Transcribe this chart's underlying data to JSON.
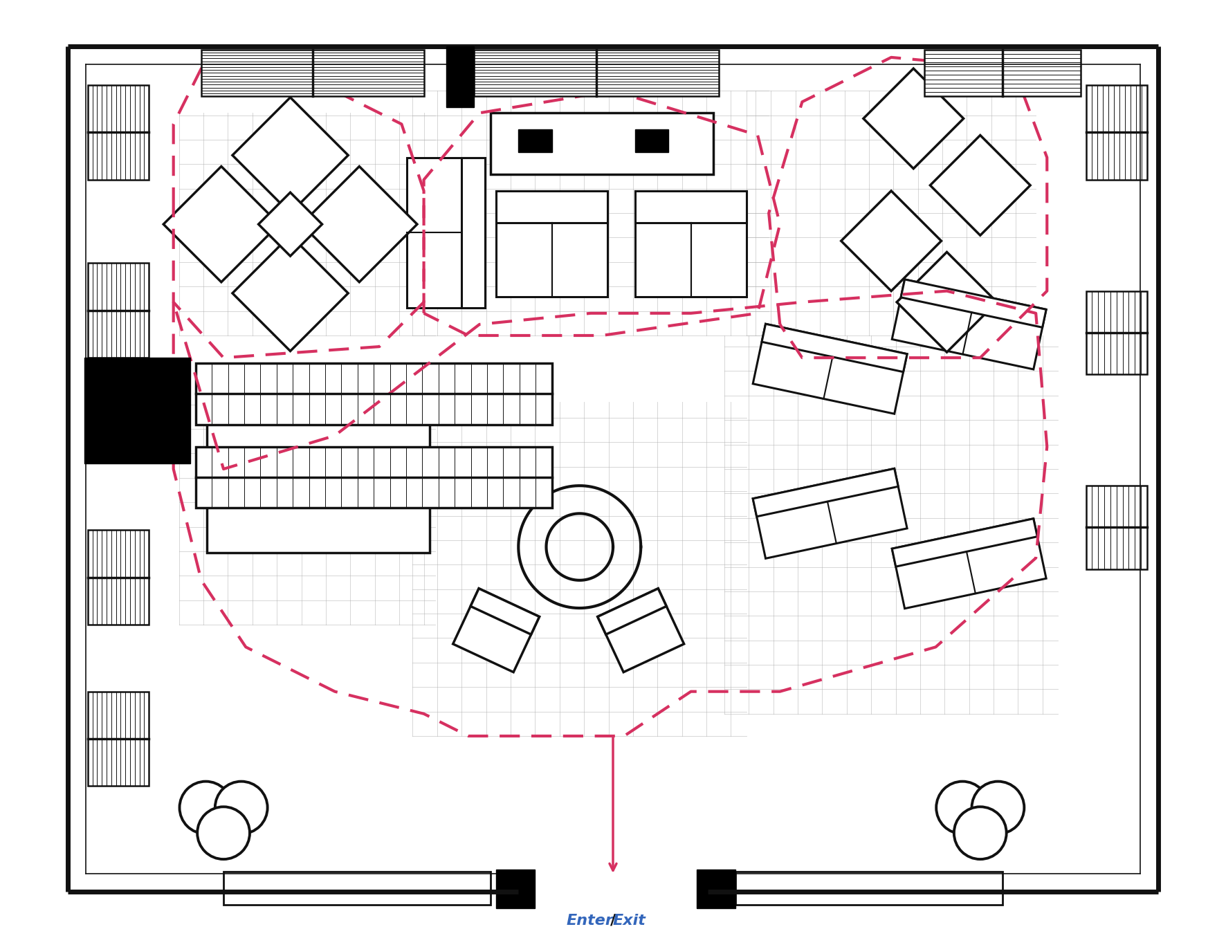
{
  "figsize": [
    17.72,
    13.56
  ],
  "dpi": 100,
  "bg": "#ffffff",
  "wc": "#111111",
  "dc": "#d63060",
  "gc": "#b0b0b0",
  "title": "Enter/Exit",
  "title_color": "#3366bb",
  "wall_lw": 5.0,
  "inner_wall_lw": 1.5,
  "dash_lw": 3.0,
  "grid_sp": 2.2,
  "grid_lw": 0.65,
  "grid_alpha": 0.55
}
